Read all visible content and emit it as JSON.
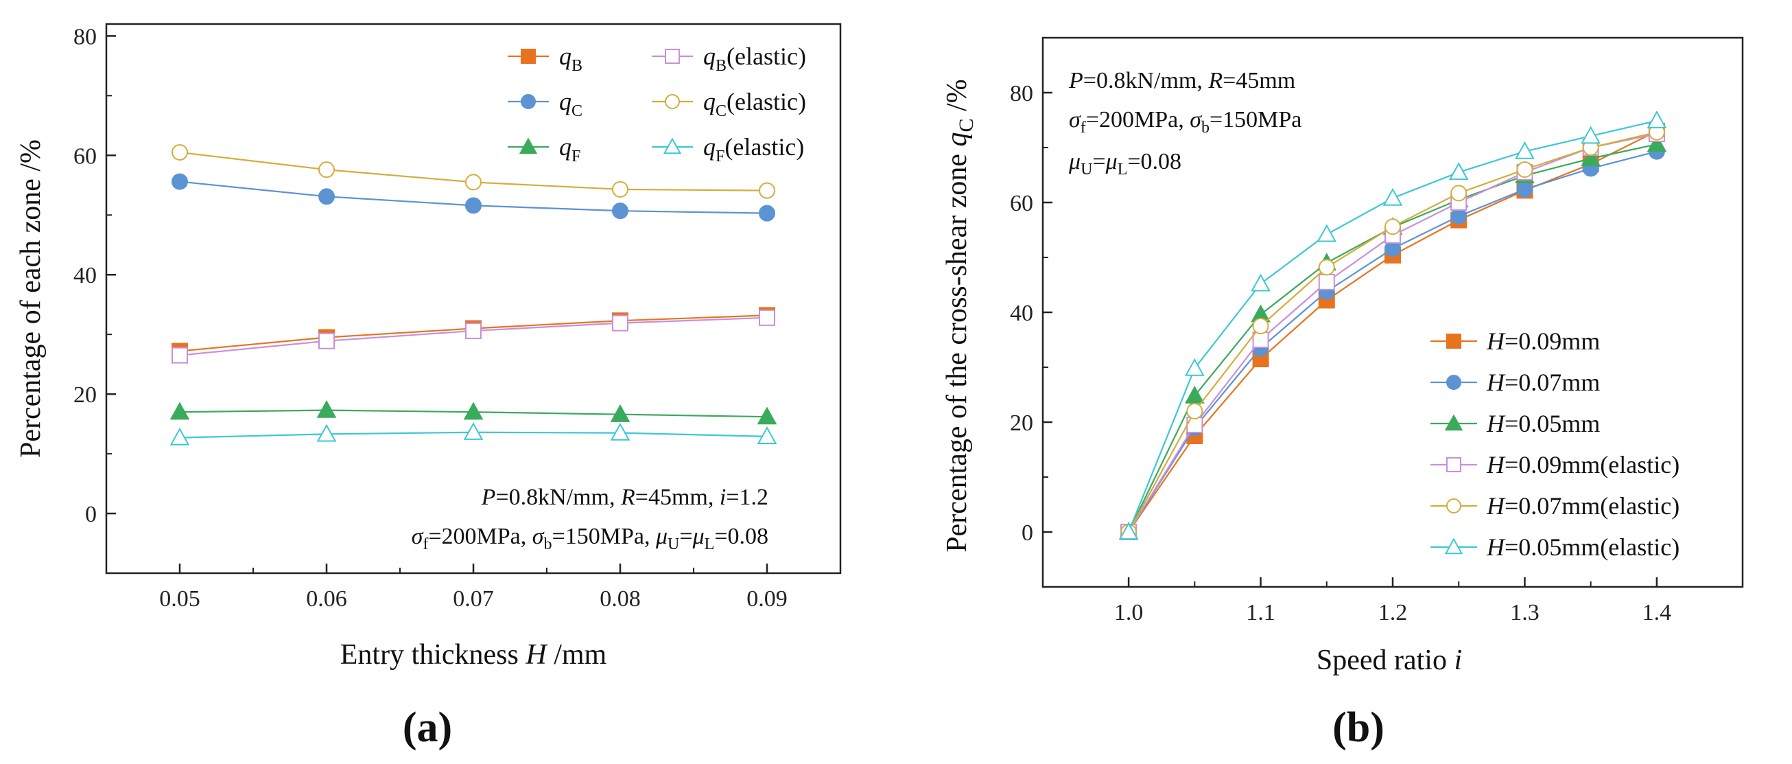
{
  "chart_data": [
    {
      "type": "line",
      "panel_label": "(a)",
      "xlabel": "Entry thickness H /mm",
      "ylabel": "Percentage of each zone /%",
      "xlim": [
        0.045,
        0.095
      ],
      "ylim": [
        -10,
        82
      ],
      "xticks": [
        "0.05",
        "0.06",
        "0.07",
        "0.08",
        "0.09"
      ],
      "yticks": [
        "0",
        "20",
        "40",
        "60",
        "80"
      ],
      "x": [
        0.05,
        0.06,
        0.07,
        0.08,
        0.09
      ],
      "series": [
        {
          "name": "qB",
          "label": "q",
          "sub": "B",
          "suffix": "",
          "marker": "square",
          "filled": true,
          "color": "#e8731f",
          "values": [
            27.2,
            29.5,
            31.0,
            32.3,
            33.2
          ]
        },
        {
          "name": "qB(elastic)",
          "label": "q",
          "sub": "B",
          "suffix": "(elastic)",
          "marker": "square",
          "filled": false,
          "color": "#c98fdc",
          "values": [
            26.5,
            28.9,
            30.6,
            31.9,
            32.8
          ]
        },
        {
          "name": "qC",
          "label": "q",
          "sub": "C",
          "suffix": "",
          "marker": "circle",
          "filled": true,
          "color": "#5b93d3",
          "values": [
            55.6,
            53.1,
            51.6,
            50.7,
            50.3
          ]
        },
        {
          "name": "qC(elastic)",
          "label": "q",
          "sub": "C",
          "suffix": "(elastic)",
          "marker": "circle",
          "filled": false,
          "color": "#d4ad3a",
          "values": [
            60.5,
            57.6,
            55.5,
            54.3,
            54.1
          ]
        },
        {
          "name": "qF",
          "label": "q",
          "sub": "F",
          "suffix": "",
          "marker": "triangle",
          "filled": true,
          "color": "#3aaa5c",
          "values": [
            17.0,
            17.3,
            17.0,
            16.6,
            16.2
          ]
        },
        {
          "name": "qF(elastic)",
          "label": "q",
          "sub": "F",
          "suffix": "(elastic)",
          "marker": "triangle",
          "filled": false,
          "color": "#3cc8d2",
          "values": [
            12.7,
            13.3,
            13.6,
            13.5,
            12.9
          ]
        }
      ],
      "annotations": {
        "line1": {
          "P": "P",
          "P_val": "=0.8kN/mm, ",
          "R": "R",
          "R_val": "=45mm, ",
          "i": "i",
          "i_val": "=1.2"
        },
        "line2": {
          "sf": "σ",
          "sf_sub": "f",
          "sf_val": "=200MPa, ",
          "sb": "σ",
          "sb_sub": "b",
          "sb_val": "=150MPa, ",
          "mu": "μ",
          "mu_sub_u": "U",
          "mid": "=",
          "mu2": "μ",
          "mu_sub_l": "L",
          "mu_val": "=0.08"
        }
      },
      "legend_position": "top-right"
    },
    {
      "type": "line",
      "panel_label": "(b)",
      "xlabel": "Speed ratio i",
      "ylabel": "Percentage of the cross-shear zone qC /%",
      "xlim": [
        0.935,
        1.465
      ],
      "ylim": [
        -10,
        90
      ],
      "xticks": [
        "1.0",
        "1.1",
        "1.2",
        "1.3",
        "1.4"
      ],
      "yticks": [
        "0",
        "20",
        "40",
        "60",
        "80"
      ],
      "x": [
        1.0,
        1.05,
        1.1,
        1.15,
        1.2,
        1.25,
        1.3,
        1.35,
        1.4
      ],
      "series": [
        {
          "name": "H=0.09mm",
          "label": "H",
          "text": "=0.09mm",
          "marker": "square",
          "filled": true,
          "color": "#e8731f",
          "values": [
            0,
            17.5,
            31.5,
            42.2,
            50.4,
            56.8,
            62.2,
            67.0,
            73.0
          ]
        },
        {
          "name": "H=0.07mm",
          "label": "H",
          "text": "=0.07mm",
          "marker": "circle",
          "filled": true,
          "color": "#5b93d3",
          "values": [
            0,
            19.0,
            33.5,
            43.8,
            51.6,
            57.5,
            62.4,
            66.2,
            69.3
          ]
        },
        {
          "name": "H=0.05mm",
          "label": "H",
          "text": "=0.05mm",
          "marker": "triangle",
          "filled": true,
          "color": "#3aaa5c",
          "values": [
            0,
            24.8,
            39.6,
            49.0,
            55.5,
            60.5,
            64.9,
            68.0,
            70.6
          ]
        },
        {
          "name": "H=0.09mm(elastic)",
          "label": "H",
          "text": "=0.09mm(elastic)",
          "marker": "square",
          "filled": false,
          "color": "#c98fdc",
          "values": [
            0,
            19.5,
            35.0,
            45.5,
            54.0,
            60.0,
            65.5,
            70.0,
            72.5
          ]
        },
        {
          "name": "H=0.07mm(elastic)",
          "label": "H",
          "text": "=0.07mm(elastic)",
          "marker": "circle",
          "filled": false,
          "color": "#d4ad3a",
          "values": [
            0,
            22.0,
            37.5,
            48.2,
            55.6,
            61.7,
            66.0,
            70.0,
            72.8
          ]
        },
        {
          "name": "H=0.05mm(elastic)",
          "label": "H",
          "text": "=0.05mm(elastic)",
          "marker": "triangle",
          "filled": false,
          "color": "#3cc8d2",
          "values": [
            0,
            29.8,
            45.2,
            54.2,
            60.8,
            65.5,
            69.3,
            72.1,
            74.9
          ]
        }
      ],
      "annotations": {
        "line1": {
          "P": "P",
          "P_val": "=0.8kN/mm, ",
          "R": "R",
          "R_val": "=45mm"
        },
        "line2": {
          "sf": "σ",
          "sf_sub": "f",
          "sf_val": "=200MPa, ",
          "sb": "σ",
          "sb_sub": "b",
          "sb_val": "=150MPa"
        },
        "line3": {
          "mu": "μ",
          "mu_sub_u": "U",
          "mid": "=",
          "mu2": "μ",
          "mu_sub_l": "L",
          "mu_val": "=0.08"
        }
      },
      "legend_position": "bottom-right"
    }
  ]
}
